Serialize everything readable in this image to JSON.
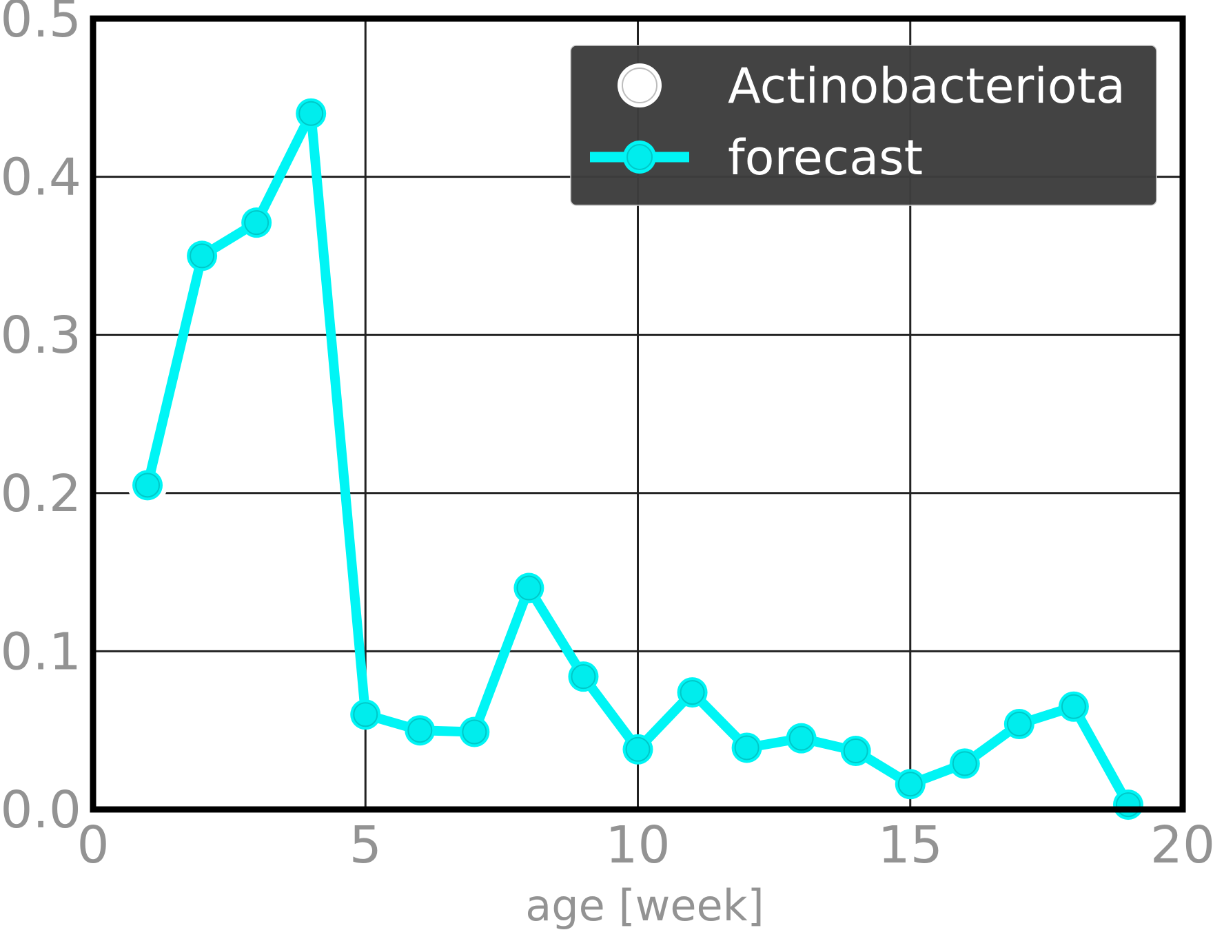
{
  "chart_data": {
    "type": "line",
    "title": "",
    "xlabel": "age [week]",
    "ylabel": "",
    "xlim": [
      0,
      20
    ],
    "ylim": [
      0,
      0.5
    ],
    "grid": true,
    "x_ticks": [
      "0",
      "5",
      "10",
      "15",
      "20"
    ],
    "y_ticks": [
      "0.0",
      "0.1",
      "0.2",
      "0.3",
      "0.4",
      "0.5"
    ],
    "legend": {
      "placement": "top-right",
      "entries": [
        "Actinobacteriota",
        "forecast"
      ]
    },
    "series": [
      {
        "name": "Actinobacteriota",
        "style": "markers",
        "color": "#ffffff",
        "x": [
          1
        ],
        "y": [
          0.205
        ]
      },
      {
        "name": "forecast",
        "style": "line+markers",
        "color": "#00f5f5",
        "x": [
          1,
          2,
          3,
          4,
          5,
          6,
          7,
          8,
          9,
          10,
          11,
          12,
          13,
          14,
          15,
          16,
          17,
          18,
          19
        ],
        "y": [
          0.205,
          0.35,
          0.371,
          0.44,
          0.06,
          0.05,
          0.049,
          0.14,
          0.084,
          0.038,
          0.074,
          0.039,
          0.045,
          0.037,
          0.016,
          0.029,
          0.054,
          0.065,
          0.003
        ]
      }
    ],
    "colors": {
      "frame": "#000000",
      "grid": "#222222",
      "tick_text": "#939393",
      "legend_bg": "#3d3d3d",
      "legend_text": "#ffffff"
    }
  }
}
